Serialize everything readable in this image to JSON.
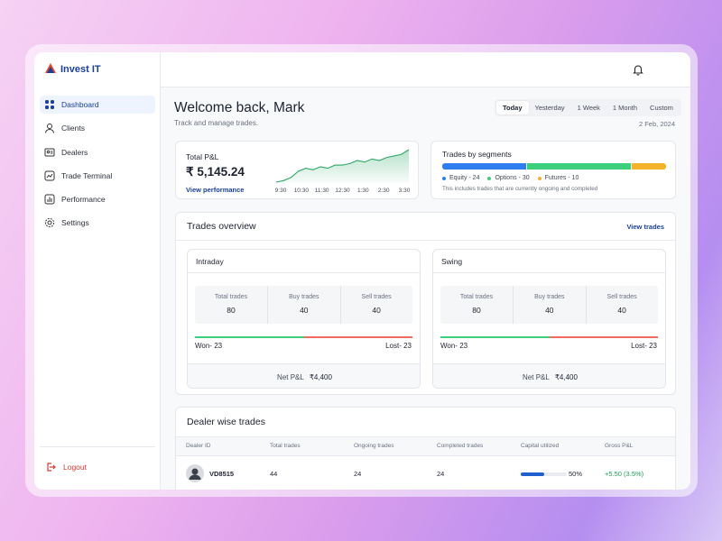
{
  "sidebar": {
    "brand": "Invest IT",
    "nav": [
      "Dashboard",
      "Clients",
      "Dealers",
      "Trade Terminal",
      "Performance",
      "Settings"
    ],
    "active": 0,
    "logout": "Logout"
  },
  "header": {
    "title": "Welcome back, Mark",
    "subtitle": "Track and manage trades.",
    "ranges": [
      "Today",
      "Yesterday",
      "1 Week",
      "1 Month",
      "Custom"
    ],
    "active_range": 0,
    "date": "2 Feb, 2024"
  },
  "pnl": {
    "label": "Total P&L",
    "value": "₹ 5,145.24",
    "link": "View performance",
    "chart": {
      "type": "line",
      "tick_labels": [
        "9:30",
        "10:30",
        "11:30",
        "12:30",
        "1:30",
        "2:30",
        "3:30"
      ],
      "values": [
        20,
        21,
        23,
        27,
        29,
        28,
        30,
        29,
        31,
        31,
        32,
        34,
        33,
        35,
        34,
        36,
        37,
        38,
        41
      ],
      "color": "#2ea866"
    }
  },
  "segments": {
    "title": "Trades by segments",
    "items": [
      {
        "label": "Equity - 24",
        "value": 24,
        "color": "#2f7ef0"
      },
      {
        "label": "Options - 30",
        "value": 30,
        "color": "#3ccf7c"
      },
      {
        "label": "Futures - 10",
        "value": 10,
        "color": "#f5b22b"
      }
    ],
    "note": "This includes trades that are currently ongoing and completed"
  },
  "overview": {
    "title": "Trades overview",
    "link": "View trades",
    "panels": [
      {
        "title": "Intraday",
        "stats": [
          {
            "label": "Total trades",
            "value": 80
          },
          {
            "label": "Buy trades",
            "value": 40
          },
          {
            "label": "Sell trades",
            "value": 40
          }
        ],
        "won": {
          "label": "Won- 23",
          "value": 23
        },
        "lost": {
          "label": "Lost- 23",
          "value": 23
        },
        "net_label": "Net P&L",
        "net_value": "₹4,400"
      },
      {
        "title": "Swing",
        "stats": [
          {
            "label": "Total trades",
            "value": 80
          },
          {
            "label": "Buy trades",
            "value": 40
          },
          {
            "label": "Sell trades",
            "value": 40
          }
        ],
        "won": {
          "label": "Won- 23",
          "value": 23
        },
        "lost": {
          "label": "Lost- 23",
          "value": 23
        },
        "net_label": "Net P&L",
        "net_value": "₹4,400"
      }
    ]
  },
  "dealers": {
    "title": "Dealer wise trades",
    "columns": [
      "Dealer ID",
      "Total trades",
      "Ongoing trades",
      "Completed trades",
      "Capital utilized",
      "Gross P&L"
    ],
    "rows": [
      {
        "id": "VD8515",
        "total": 44,
        "ongoing": 24,
        "completed": 24,
        "capital": {
          "value": 50,
          "label": "50%"
        },
        "gross": "+5.50 (3.5%)"
      }
    ]
  }
}
